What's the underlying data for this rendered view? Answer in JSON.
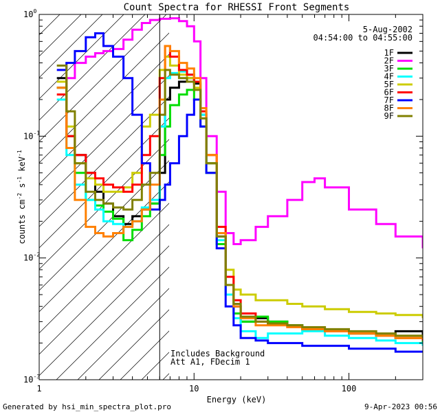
{
  "chart_data": {
    "type": "line",
    "title": "Count Spectra for RHESSI Front Segments",
    "xlabel": "Energy (keV)",
    "ylabel_main": "counts cm",
    "ylabel_sup1": "-2",
    "ylabel_mid": " s",
    "ylabel_sup2": "-1",
    "ylabel_mid2": " keV",
    "ylabel_sup3": "-1",
    "x_scale": "log",
    "y_scale": "log",
    "xlim": [
      1,
      300
    ],
    "ylim": [
      0.001,
      1.0
    ],
    "x_ticks": [
      {
        "value": 1,
        "label": "1"
      },
      {
        "value": 10,
        "label": "10"
      },
      {
        "value": 100,
        "label": "100"
      }
    ],
    "y_ticks": [
      {
        "value": 1,
        "base": "10",
        "exp": "0"
      },
      {
        "value": 0.1,
        "base": "10",
        "exp": "-1"
      },
      {
        "value": 0.01,
        "base": "10",
        "exp": "-2"
      },
      {
        "value": 0.001,
        "base": "10",
        "exp": "-3"
      }
    ],
    "date": "5-Aug-2002",
    "time_range": "04:54:00 to 04:55:00",
    "threshold_energy": 6,
    "annotation_line1": "Includes Background",
    "annotation_line2": "Att A1, FDecim 1",
    "footer_left": "Generated by hsi_min_spectra_plot.pro",
    "footer_right": "9-Apr-2023 00:56",
    "series": [
      {
        "name": "1F",
        "color": "#000000",
        "x": [
          1.3,
          1.5,
          1.7,
          2.0,
          2.3,
          2.6,
          3.0,
          3.5,
          4.0,
          4.6,
          5.2,
          6.0,
          6.5,
          7.0,
          8.0,
          9.0,
          10.0,
          11.0,
          12.0,
          14.0,
          16.0,
          18.0,
          20.0,
          25.0,
          30.0,
          40.0,
          50.0,
          70.0,
          100.0,
          150.0,
          200.0,
          300.0
        ],
        "y": [
          0.3,
          0.1,
          0.07,
          0.05,
          0.035,
          0.028,
          0.022,
          0.019,
          0.022,
          0.025,
          0.028,
          0.05,
          0.2,
          0.25,
          0.28,
          0.3,
          0.27,
          0.15,
          0.06,
          0.015,
          0.006,
          0.004,
          0.003,
          0.0032,
          0.003,
          0.0028,
          0.0026,
          0.0025,
          0.0024,
          0.0023,
          0.0025,
          0.0022
        ]
      },
      {
        "name": "2F",
        "color": "#ff00ff",
        "x": [
          1.3,
          1.5,
          1.7,
          2.0,
          2.3,
          2.6,
          3.0,
          3.5,
          4.0,
          4.6,
          5.2,
          6.0,
          7.0,
          8.0,
          9.0,
          10.0,
          11.0,
          12.0,
          14.0,
          16.0,
          18.0,
          20.0,
          25.0,
          30.0,
          40.0,
          50.0,
          60.0,
          70.0,
          100.0,
          150.0,
          200.0,
          300.0
        ],
        "y": [
          0.25,
          0.3,
          0.4,
          0.45,
          0.48,
          0.5,
          0.52,
          0.62,
          0.75,
          0.85,
          0.9,
          0.92,
          0.93,
          0.88,
          0.8,
          0.6,
          0.3,
          0.1,
          0.035,
          0.016,
          0.013,
          0.014,
          0.018,
          0.022,
          0.03,
          0.042,
          0.045,
          0.038,
          0.025,
          0.019,
          0.015,
          0.012
        ]
      },
      {
        "name": "3F",
        "color": "#00dd00",
        "x": [
          1.3,
          1.5,
          1.7,
          2.0,
          2.3,
          2.6,
          3.0,
          3.5,
          4.0,
          4.6,
          5.2,
          6.0,
          6.5,
          7.0,
          8.0,
          9.0,
          10.0,
          11.0,
          12.0,
          14.0,
          16.0,
          18.0,
          20.0,
          25.0,
          30.0,
          40.0,
          50.0,
          70.0,
          100.0,
          150.0,
          200.0,
          300.0
        ],
        "y": [
          0.25,
          0.1,
          0.05,
          0.03,
          0.027,
          0.024,
          0.021,
          0.014,
          0.017,
          0.022,
          0.028,
          0.07,
          0.12,
          0.18,
          0.22,
          0.24,
          0.2,
          0.12,
          0.05,
          0.013,
          0.005,
          0.0035,
          0.003,
          0.0033,
          0.003,
          0.0028,
          0.0026,
          0.0025,
          0.0024,
          0.0023,
          0.0022,
          0.002
        ]
      },
      {
        "name": "4F",
        "color": "#00ffff",
        "x": [
          1.3,
          1.5,
          1.7,
          2.0,
          2.3,
          2.6,
          3.0,
          3.5,
          4.0,
          4.6,
          5.2,
          6.0,
          6.5,
          7.0,
          8.0,
          9.0,
          10.0,
          11.0,
          12.0,
          14.0,
          16.0,
          18.0,
          20.0,
          25.0,
          30.0,
          40.0,
          50.0,
          70.0,
          100.0,
          150.0,
          200.0,
          300.0
        ],
        "y": [
          0.2,
          0.07,
          0.04,
          0.03,
          0.025,
          0.02,
          0.019,
          0.018,
          0.02,
          0.026,
          0.03,
          0.12,
          0.3,
          0.33,
          0.34,
          0.32,
          0.28,
          0.15,
          0.06,
          0.014,
          0.005,
          0.0032,
          0.0025,
          0.0022,
          0.0024,
          0.0024,
          0.0025,
          0.0023,
          0.0022,
          0.0021,
          0.002,
          0.0019
        ]
      },
      {
        "name": "5F",
        "color": "#cccc00",
        "x": [
          1.3,
          1.5,
          1.7,
          2.0,
          2.3,
          2.6,
          3.0,
          3.5,
          4.0,
          4.6,
          5.2,
          6.0,
          6.5,
          7.0,
          8.0,
          9.0,
          10.0,
          11.0,
          12.0,
          14.0,
          16.0,
          18.0,
          20.0,
          25.0,
          30.0,
          40.0,
          50.0,
          70.0,
          100.0,
          150.0,
          200.0,
          300.0
        ],
        "y": [
          0.28,
          0.12,
          0.06,
          0.045,
          0.04,
          0.035,
          0.035,
          0.038,
          0.05,
          0.12,
          0.15,
          0.35,
          0.45,
          0.38,
          0.32,
          0.3,
          0.25,
          0.14,
          0.06,
          0.016,
          0.008,
          0.0055,
          0.005,
          0.0045,
          0.0045,
          0.0042,
          0.004,
          0.0038,
          0.0036,
          0.0035,
          0.0034,
          0.0032
        ]
      },
      {
        "name": "6F",
        "color": "#ff0000",
        "x": [
          1.3,
          1.5,
          1.7,
          2.0,
          2.3,
          2.6,
          3.0,
          3.5,
          4.0,
          4.6,
          5.2,
          6.0,
          6.5,
          7.0,
          8.0,
          9.0,
          10.0,
          11.0,
          12.0,
          14.0,
          16.0,
          18.0,
          20.0,
          25.0,
          30.0,
          40.0,
          50.0,
          70.0,
          100.0,
          150.0,
          200.0,
          300.0
        ],
        "y": [
          0.22,
          0.1,
          0.07,
          0.05,
          0.045,
          0.04,
          0.038,
          0.035,
          0.04,
          0.07,
          0.1,
          0.3,
          0.55,
          0.45,
          0.35,
          0.32,
          0.28,
          0.16,
          0.07,
          0.018,
          0.007,
          0.0045,
          0.0035,
          0.003,
          0.0029,
          0.0027,
          0.0026,
          0.0025,
          0.0024,
          0.0023,
          0.0022,
          0.0021
        ]
      },
      {
        "name": "7F",
        "color": "#0000ff",
        "x": [
          1.3,
          1.5,
          1.7,
          2.0,
          2.3,
          2.6,
          3.0,
          3.5,
          4.0,
          4.6,
          5.2,
          6.0,
          6.5,
          7.0,
          8.0,
          9.0,
          10.0,
          11.0,
          12.0,
          14.0,
          16.0,
          18.0,
          20.0,
          25.0,
          30.0,
          40.0,
          50.0,
          70.0,
          100.0,
          150.0,
          200.0,
          300.0
        ],
        "y": [
          0.35,
          0.4,
          0.5,
          0.65,
          0.7,
          0.55,
          0.45,
          0.3,
          0.15,
          0.06,
          0.025,
          0.03,
          0.04,
          0.06,
          0.1,
          0.15,
          0.2,
          0.12,
          0.05,
          0.012,
          0.004,
          0.0028,
          0.0022,
          0.0021,
          0.002,
          0.002,
          0.0019,
          0.0019,
          0.0018,
          0.0018,
          0.0017,
          0.0017
        ]
      },
      {
        "name": "8F",
        "color": "#ff8000",
        "x": [
          1.3,
          1.5,
          1.7,
          2.0,
          2.3,
          2.6,
          3.0,
          3.5,
          4.0,
          4.6,
          5.2,
          6.0,
          6.5,
          7.0,
          8.0,
          9.0,
          10.0,
          11.0,
          12.0,
          14.0,
          16.0,
          18.0,
          20.0,
          25.0,
          30.0,
          40.0,
          50.0,
          70.0,
          100.0,
          150.0,
          200.0,
          300.0
        ],
        "y": [
          0.25,
          0.08,
          0.03,
          0.018,
          0.016,
          0.015,
          0.016,
          0.018,
          0.02,
          0.025,
          0.04,
          0.2,
          0.55,
          0.5,
          0.4,
          0.36,
          0.3,
          0.17,
          0.07,
          0.016,
          0.006,
          0.004,
          0.0032,
          0.0028,
          0.0028,
          0.0027,
          0.0026,
          0.0025,
          0.0024,
          0.0023,
          0.0022,
          0.0022
        ]
      },
      {
        "name": "9F",
        "color": "#808000",
        "x": [
          1.3,
          1.5,
          1.7,
          2.0,
          2.3,
          2.6,
          3.0,
          3.5,
          4.0,
          4.6,
          5.2,
          6.0,
          6.5,
          7.0,
          8.0,
          9.0,
          10.0,
          11.0,
          12.0,
          14.0,
          16.0,
          18.0,
          20.0,
          25.0,
          30.0,
          40.0,
          50.0,
          70.0,
          100.0,
          150.0,
          200.0,
          300.0
        ],
        "y": [
          0.38,
          0.16,
          0.06,
          0.035,
          0.03,
          0.028,
          0.026,
          0.025,
          0.03,
          0.04,
          0.05,
          0.15,
          0.35,
          0.32,
          0.3,
          0.28,
          0.24,
          0.14,
          0.06,
          0.015,
          0.006,
          0.0042,
          0.0033,
          0.003,
          0.0029,
          0.0028,
          0.0027,
          0.0026,
          0.0025,
          0.0024,
          0.0023,
          0.0022
        ]
      }
    ]
  }
}
